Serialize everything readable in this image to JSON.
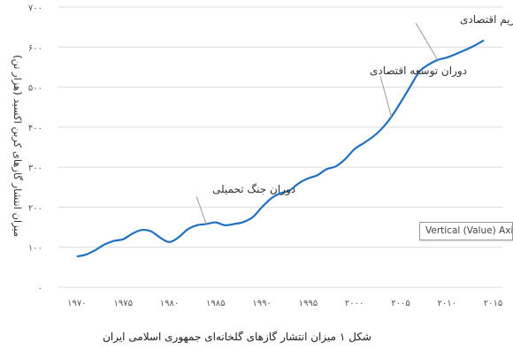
{
  "chart_data": {
    "type": "line",
    "title": "",
    "xlabel": "",
    "ylabel": "میزان انتشار گازهای کربن اکسید (هزار تن)",
    "xlim": [
      1968,
      2016
    ],
    "ylim": [
      0,
      700
    ],
    "xticks": [
      1970,
      1975,
      1980,
      1985,
      1990,
      1995,
      2000,
      2005,
      2010,
      2015
    ],
    "xtick_labels": [
      "۱۹۷۰",
      "۱۹۷۵",
      "۱۹۸۰",
      "۱۹۸۵",
      "۱۹۹۰",
      "۱۹۹۵",
      "۲۰۰۰",
      "۲۰۰۵",
      "۲۰۱۰",
      "۲۰۱۵"
    ],
    "yticks": [
      0,
      100,
      200,
      300,
      400,
      500,
      600,
      700
    ],
    "ytick_labels": [
      "۰",
      "۱۰۰",
      "۲۰۰",
      "۳۰۰",
      "۴۰۰",
      "۵۰۰",
      "۶۰۰",
      "۷۰۰"
    ],
    "grid": "horizontal",
    "color": "#1f70c1",
    "series": [
      {
        "x": [
          1970,
          1971,
          1972,
          1973,
          1974,
          1975,
          1976,
          1977,
          1978,
          1979,
          1980,
          1981,
          1982,
          1983,
          1984,
          1985,
          1986,
          1987,
          1988,
          1989,
          1990,
          1991,
          1992,
          1993,
          1994,
          1995,
          1996,
          1997,
          1998,
          1999,
          2000,
          2001,
          2002,
          2003,
          2004,
          2005,
          2006,
          2007,
          2008,
          2009,
          2010,
          2011,
          2012,
          2013,
          2014
        ],
        "y": [
          77,
          82,
          93,
          107,
          116,
          120,
          134,
          143,
          140,
          124,
          113,
          125,
          145,
          155,
          158,
          162,
          155,
          158,
          163,
          175,
          200,
          222,
          235,
          242,
          260,
          272,
          280,
          295,
          302,
          320,
          345,
          360,
          376,
          397,
          426,
          462,
          500,
          538,
          556,
          568,
          574,
          583,
          593,
          604,
          617
        ]
      }
    ],
    "annotations": [
      {
        "text": "دوران جنگ تحمیلی",
        "x": 1984,
        "y": 157
      },
      {
        "text": "دوران توسعه اقتصادی",
        "x": 2004,
        "y": 426
      },
      {
        "text": "دوران تحریم اقتصادی",
        "x": 2009,
        "y": 568
      }
    ]
  },
  "tooltip": "Vertical (Value) Axis",
  "caption": "شکل ۱ میزان انتشار گازهای گلخانه‌ای جمهوری اسلامی ایران"
}
